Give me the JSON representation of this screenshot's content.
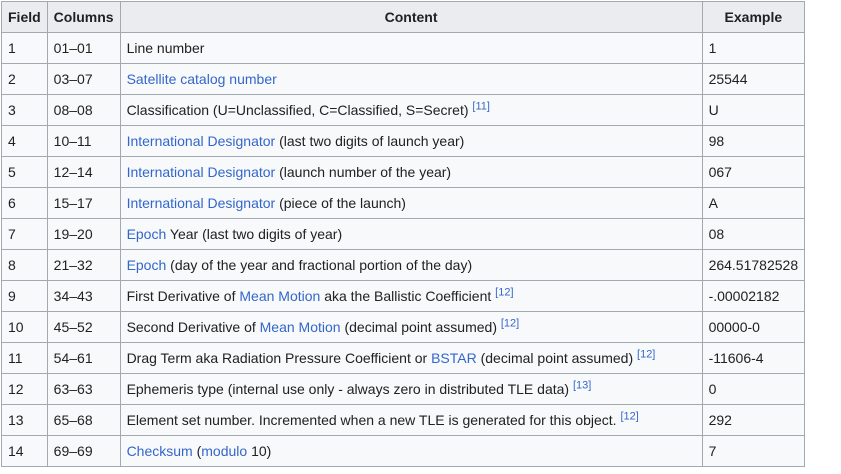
{
  "headers": [
    "Field",
    "Columns",
    "Content",
    "Example"
  ],
  "rows": [
    {
      "field": "1",
      "columns": "01–01",
      "content": [
        {
          "t": "Line number"
        }
      ],
      "example": "1"
    },
    {
      "field": "2",
      "columns": "03–07",
      "content": [
        {
          "t": "Satellite catalog number",
          "link": true
        }
      ],
      "example": "25544"
    },
    {
      "field": "3",
      "columns": "08–08",
      "content": [
        {
          "t": "Classification (U=Unclassified, C=Classified, S=Secret) "
        },
        {
          "t": "[11]",
          "ref": true
        }
      ],
      "example": "U"
    },
    {
      "field": "4",
      "columns": "10–11",
      "content": [
        {
          "t": "International Designator",
          "link": true
        },
        {
          "t": " (last two digits of launch year)"
        }
      ],
      "example": "98"
    },
    {
      "field": "5",
      "columns": "12–14",
      "content": [
        {
          "t": "International Designator",
          "link": true
        },
        {
          "t": " (launch number of the year)"
        }
      ],
      "example": "067"
    },
    {
      "field": "6",
      "columns": "15–17",
      "content": [
        {
          "t": "International Designator",
          "link": true
        },
        {
          "t": " (piece of the launch)"
        }
      ],
      "example": "A"
    },
    {
      "field": "7",
      "columns": "19–20",
      "content": [
        {
          "t": "Epoch",
          "link": true
        },
        {
          "t": " Year (last two digits of year)"
        }
      ],
      "example": "08"
    },
    {
      "field": "8",
      "columns": "21–32",
      "content": [
        {
          "t": "Epoch",
          "link": true
        },
        {
          "t": " (day of the year and fractional portion of the day)"
        }
      ],
      "example": "264.51782528"
    },
    {
      "field": "9",
      "columns": "34–43",
      "content": [
        {
          "t": "First Derivative of "
        },
        {
          "t": "Mean Motion",
          "link": true
        },
        {
          "t": " aka the Ballistic Coefficient "
        },
        {
          "t": "[12]",
          "ref": true
        }
      ],
      "example": "-.00002182"
    },
    {
      "field": "10",
      "columns": "45–52",
      "content": [
        {
          "t": "Second Derivative of "
        },
        {
          "t": "Mean Motion",
          "link": true
        },
        {
          "t": " (decimal point assumed) "
        },
        {
          "t": "[12]",
          "ref": true
        }
      ],
      "example": "00000-0"
    },
    {
      "field": "11",
      "columns": "54–61",
      "content": [
        {
          "t": "Drag Term aka Radiation Pressure Coefficient or "
        },
        {
          "t": "BSTAR",
          "link": true
        },
        {
          "t": " (decimal point assumed) "
        },
        {
          "t": "[12]",
          "ref": true
        }
      ],
      "example": "-11606-4"
    },
    {
      "field": "12",
      "columns": "63–63",
      "content": [
        {
          "t": "Ephemeris type (internal use only - always zero in distributed TLE data) "
        },
        {
          "t": "[13]",
          "ref": true
        }
      ],
      "example": "0"
    },
    {
      "field": "13",
      "columns": "65–68",
      "content": [
        {
          "t": "Element set number. Incremented when a new TLE is generated for this object. "
        },
        {
          "t": "[12]",
          "ref": true
        }
      ],
      "example": "292"
    },
    {
      "field": "14",
      "columns": "69–69",
      "content": [
        {
          "t": "Checksum",
          "link": true
        },
        {
          "t": " ("
        },
        {
          "t": "modulo",
          "link": true
        },
        {
          "t": " 10)"
        }
      ],
      "example": "7"
    }
  ]
}
